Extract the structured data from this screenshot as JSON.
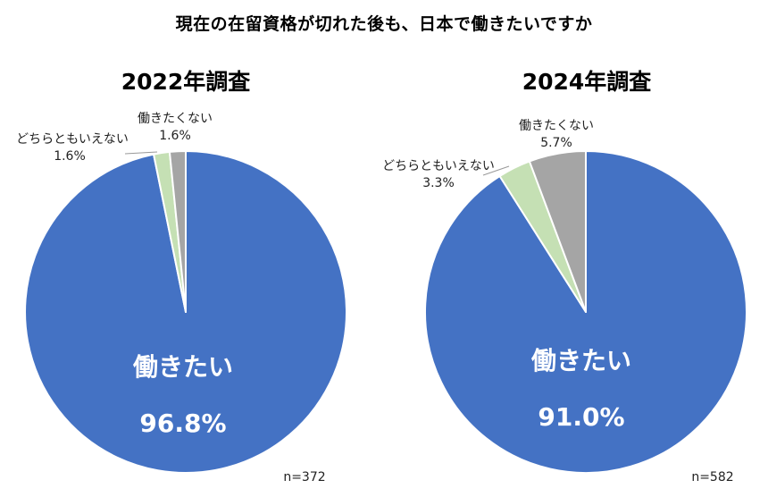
{
  "title": "現在の在留資格が切れた後も、日本で働きたいですか",
  "chart_data": [
    {
      "type": "pie",
      "title": "2022年調査",
      "n_label": "n=372",
      "slices": [
        {
          "label": "働きたい",
          "value": 96.8,
          "value_text": "96.8%",
          "color": "#4472C4"
        },
        {
          "label": "どちらともいえない",
          "value": 1.6,
          "value_text": "1.6%",
          "color": "#C5E0B4"
        },
        {
          "label": "働きたくない",
          "value": 1.6,
          "value_text": "1.6%",
          "color": "#A5A5A5"
        }
      ]
    },
    {
      "type": "pie",
      "title": "2024年調査",
      "n_label": "n=582",
      "slices": [
        {
          "label": "働きたい",
          "value": 91.0,
          "value_text": "91.0%",
          "color": "#4472C4"
        },
        {
          "label": "どちらともいえない",
          "value": 3.3,
          "value_text": "3.3%",
          "color": "#C5E0B4"
        },
        {
          "label": "働きたくない",
          "value": 5.7,
          "value_text": "5.7%",
          "color": "#A5A5A5"
        }
      ]
    }
  ]
}
